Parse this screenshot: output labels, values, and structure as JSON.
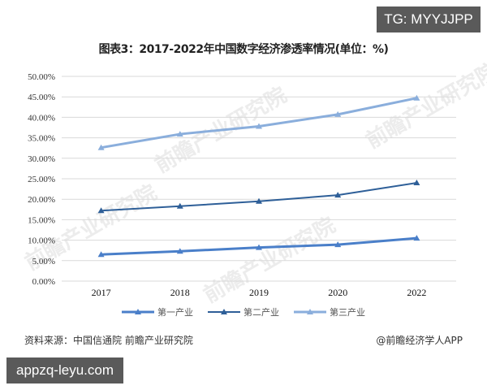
{
  "badges": {
    "top_right": "TG: MYYJJPP",
    "bottom_left": "appzq-leyu.com"
  },
  "footer": {
    "source": "资料来源：中国信通院 前瞻产业研究院",
    "credit": "@前瞻经济学人APP"
  },
  "watermark_text": "前瞻产业研究院",
  "chart_data": {
    "type": "line",
    "title": "图表3：2017-2022年中国数字经济渗透率情况(单位：%)",
    "xlabel": "",
    "ylabel": "",
    "categories": [
      "2017",
      "2018",
      "2019",
      "2020",
      "2022"
    ],
    "series": [
      {
        "name": "第一产业",
        "values": [
          6.5,
          7.3,
          8.2,
          8.9,
          10.5
        ],
        "color": "#4a7fc9",
        "width": 3
      },
      {
        "name": "第二产业",
        "values": [
          17.2,
          18.3,
          19.5,
          21.0,
          24.0
        ],
        "color": "#2e5f98",
        "width": 2
      },
      {
        "name": "第三产业",
        "values": [
          32.6,
          35.9,
          37.8,
          40.7,
          44.7
        ],
        "color": "#8aaedc",
        "width": 3
      }
    ],
    "ylim": [
      0,
      50
    ],
    "yticks": [
      "0.00%",
      "5.00%",
      "10.00%",
      "15.00%",
      "20.00%",
      "25.00%",
      "30.00%",
      "35.00%",
      "40.00%",
      "45.00%",
      "50.00%"
    ],
    "grid": true,
    "legend_position": "bottom",
    "marker": "triangle"
  }
}
